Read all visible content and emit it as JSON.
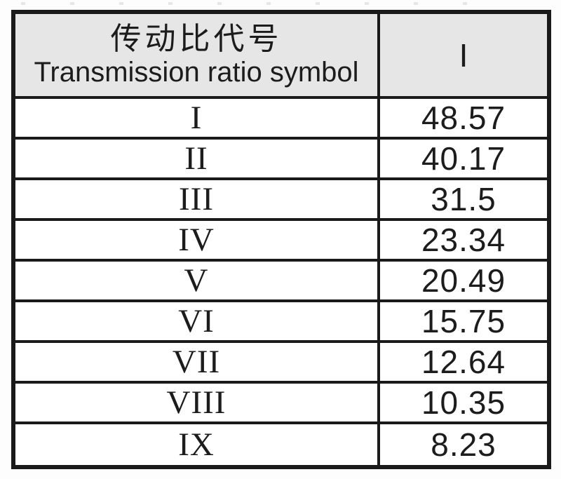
{
  "table": {
    "header": {
      "col1_zh": "传动比代号",
      "col1_en": "Transmission ratio symbol",
      "col2_label": "I"
    },
    "rows": [
      {
        "symbol": "I",
        "value": "48.57"
      },
      {
        "symbol": "II",
        "value": "40.17"
      },
      {
        "symbol": "III",
        "value": "31.5"
      },
      {
        "symbol": "IV",
        "value": "23.34"
      },
      {
        "symbol": "V",
        "value": "20.49"
      },
      {
        "symbol": "VI",
        "value": "15.75"
      },
      {
        "symbol": "VII",
        "value": "12.64"
      },
      {
        "symbol": "VIII",
        "value": "10.35"
      },
      {
        "symbol": "IX",
        "value": "8.23"
      }
    ]
  },
  "colors": {
    "header_background": "#e6e6e6",
    "border": "#1a1a1a",
    "page_background": "#ffffff",
    "text": "#1c1c1c"
  }
}
